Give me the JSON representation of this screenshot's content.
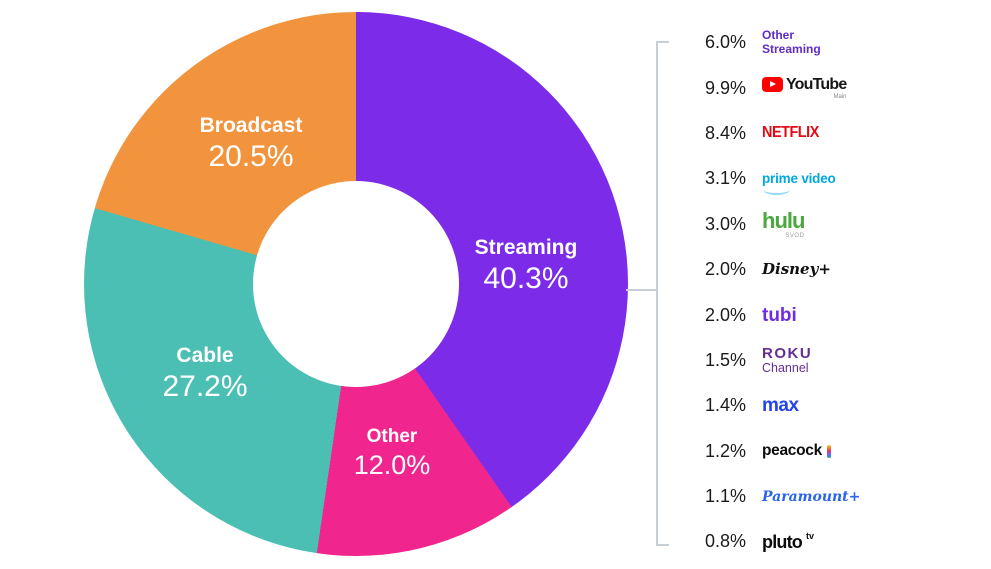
{
  "chart_data": {
    "type": "pie",
    "subtype": "donut",
    "title": "",
    "units": "%",
    "start_angle": "top",
    "direction": "clockwise",
    "legend_position": "none",
    "slices": [
      {
        "label": "Streaming",
        "value": 40.3,
        "pct_label": "40.3%",
        "color": "#7C2BE8"
      },
      {
        "label": "Other",
        "value": 12.0,
        "pct_label": "12.0%",
        "color": "#F0268E"
      },
      {
        "label": "Cable",
        "value": 27.2,
        "pct_label": "27.2%",
        "color": "#4CBFB4"
      },
      {
        "label": "Broadcast",
        "value": 20.5,
        "pct_label": "20.5%",
        "color": "#F1943D"
      }
    ],
    "breakdown": {
      "of": "Streaming",
      "connector": "bracket",
      "items": [
        {
          "id": "other-streaming",
          "pct": 6.0,
          "pct_label": "6.0%",
          "brand": "Other Streaming"
        },
        {
          "id": "youtube",
          "pct": 9.9,
          "pct_label": "9.9%",
          "brand": "YouTube",
          "sub": "Main",
          "icon": "youtube-play-icon"
        },
        {
          "id": "netflix",
          "pct": 8.4,
          "pct_label": "8.4%",
          "brand": "NETFLIX"
        },
        {
          "id": "prime-video",
          "pct": 3.1,
          "pct_label": "3.1%",
          "brand": "prime video",
          "mark": "prime-smile-icon"
        },
        {
          "id": "hulu",
          "pct": 3.0,
          "pct_label": "3.0%",
          "brand": "hulu",
          "sub": "SVOD"
        },
        {
          "id": "disney-plus",
          "pct": 2.0,
          "pct_label": "2.0%",
          "brand": "Disney+"
        },
        {
          "id": "tubi",
          "pct": 2.0,
          "pct_label": "2.0%",
          "brand": "tubi"
        },
        {
          "id": "roku-channel",
          "pct": 1.5,
          "pct_label": "1.5%",
          "brand": "Roku",
          "sub": "Channel"
        },
        {
          "id": "max",
          "pct": 1.4,
          "pct_label": "1.4%",
          "brand": "max"
        },
        {
          "id": "peacock",
          "pct": 1.2,
          "pct_label": "1.2%",
          "brand": "peacock",
          "mark": "peacock-feathers-icon"
        },
        {
          "id": "paramount-plus",
          "pct": 1.1,
          "pct_label": "1.1%",
          "brand": "Paramount+"
        },
        {
          "id": "pluto-tv",
          "pct": 0.8,
          "pct_label": "0.8%",
          "brand": "pluto",
          "sup": "tv"
        }
      ]
    },
    "colors": {
      "bracket_line": "#C7CED6",
      "label_text": "#FFFFFF",
      "value_text": "#1B1B1D"
    }
  }
}
